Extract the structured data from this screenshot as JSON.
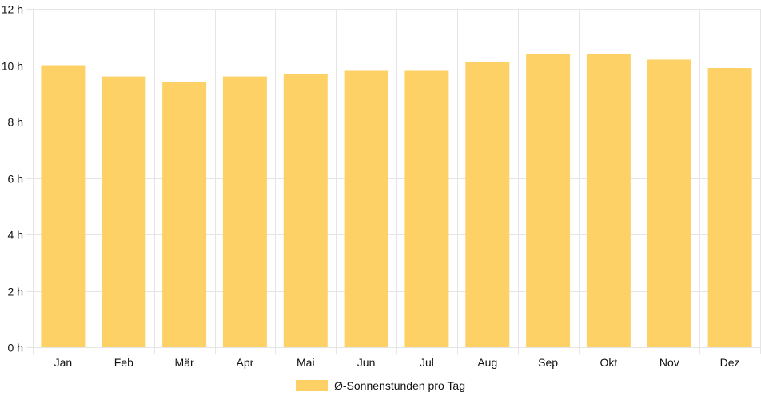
{
  "chart_data": {
    "type": "bar",
    "categories": [
      "Jan",
      "Feb",
      "Mär",
      "Apr",
      "Mai",
      "Jun",
      "Jul",
      "Aug",
      "Sep",
      "Okt",
      "Nov",
      "Dez"
    ],
    "series": [
      {
        "name": "Ø-Sonnenstunden pro Tag",
        "values": [
          10.0,
          9.6,
          9.4,
          9.6,
          9.7,
          9.8,
          9.8,
          10.1,
          10.4,
          10.4,
          10.2,
          9.9
        ]
      }
    ],
    "ylim": [
      0,
      12
    ],
    "yticks": [
      0,
      2,
      4,
      6,
      8,
      10,
      12
    ],
    "ytick_labels": [
      "0 h",
      "2 h",
      "4 h",
      "6 h",
      "8 h",
      "10 h",
      "12 h"
    ],
    "title": "",
    "xlabel": "",
    "ylabel": "",
    "grid": true,
    "legend_position": "bottom",
    "colors": {
      "bar": "#fdd166",
      "grid": "#e5e5e5",
      "text": "#111111"
    }
  }
}
